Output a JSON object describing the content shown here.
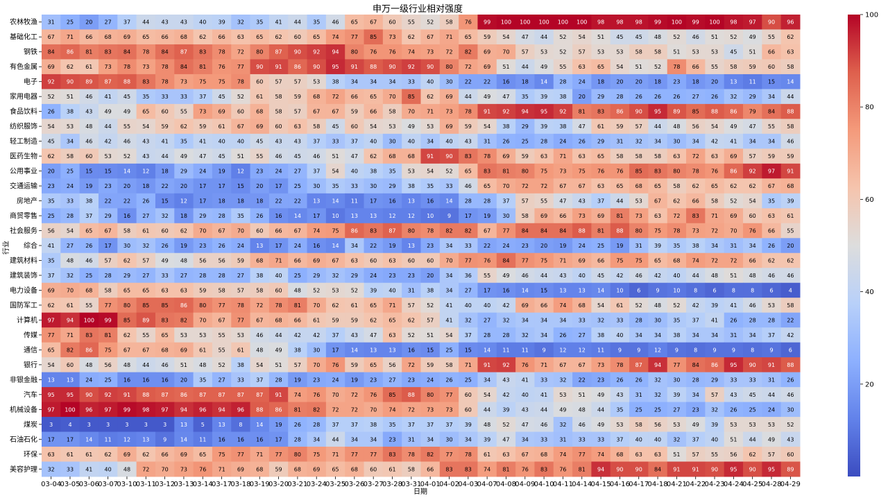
{
  "chart_data": {
    "type": "heatmap",
    "title": "申万一级行业相对强度",
    "xlabel": "日期",
    "ylabel": "行业",
    "colormap": "coolwarm",
    "vmin": 0,
    "vmax": 100,
    "colorbar_ticks": [
      20,
      40,
      60,
      80,
      100
    ],
    "x": [
      "03-04",
      "03-05",
      "03-06",
      "03-07",
      "03-10",
      "03-11",
      "03-12",
      "03-13",
      "03-14",
      "03-17",
      "03-18",
      "03-19",
      "03-20",
      "03-21",
      "03-24",
      "03-25",
      "03-26",
      "03-27",
      "03-28",
      "03-31",
      "04-01",
      "04-02",
      "04-03",
      "04-07",
      "04-08",
      "04-09",
      "04-10",
      "04-11",
      "04-14",
      "04-15",
      "04-16",
      "04-17",
      "04-18",
      "04-21",
      "04-22",
      "04-23",
      "04-24",
      "04-25",
      "04-28",
      "04-29"
    ],
    "y": [
      "农林牧渔",
      "基础化工",
      "钢铁",
      "有色金属",
      "电子",
      "家用电器",
      "食品饮料",
      "纺织服饰",
      "轻工制造",
      "医药生物",
      "公用事业",
      "交通运输",
      "房地产",
      "商贸零售",
      "社会服务",
      "综合",
      "建筑材料",
      "建筑装饰",
      "电力设备",
      "国防军工",
      "计算机",
      "传媒",
      "通信",
      "银行",
      "非银金融",
      "汽车",
      "机械设备",
      "煤炭",
      "石油石化",
      "环保",
      "美容护理"
    ],
    "values": [
      [
        31,
        25,
        20,
        27,
        37,
        44,
        43,
        43,
        40,
        39,
        32,
        35,
        41,
        44,
        35,
        46,
        65,
        67,
        60,
        55,
        52,
        58,
        76,
        99,
        100,
        100,
        100,
        100,
        100,
        98,
        98,
        98,
        99,
        100,
        99,
        100,
        98,
        97,
        90,
        96
      ],
      [
        67,
        71,
        66,
        68,
        69,
        65,
        66,
        68,
        62,
        66,
        63,
        65,
        62,
        60,
        65,
        74,
        77,
        85,
        73,
        62,
        67,
        71,
        65,
        59,
        54,
        47,
        44,
        52,
        54,
        51,
        45,
        45,
        48,
        52,
        46,
        51,
        52,
        49,
        55,
        62
      ],
      [
        84,
        86,
        81,
        83,
        84,
        78,
        84,
        87,
        83,
        78,
        72,
        80,
        87,
        90,
        92,
        94,
        80,
        76,
        76,
        74,
        73,
        72,
        82,
        69,
        70,
        57,
        53,
        52,
        57,
        53,
        53,
        58,
        58,
        51,
        53,
        53,
        45,
        51,
        66,
        63
      ],
      [
        69,
        62,
        61,
        73,
        78,
        73,
        78,
        84,
        81,
        76,
        77,
        90,
        91,
        86,
        90,
        95,
        91,
        88,
        90,
        92,
        90,
        80,
        72,
        69,
        51,
        44,
        49,
        55,
        63,
        65,
        54,
        51,
        52,
        78,
        66,
        55,
        58,
        59,
        60,
        58
      ],
      [
        92,
        90,
        89,
        87,
        88,
        83,
        78,
        73,
        75,
        75,
        78,
        60,
        57,
        57,
        53,
        38,
        34,
        34,
        34,
        33,
        40,
        30,
        22,
        22,
        16,
        18,
        14,
        28,
        24,
        18,
        20,
        20,
        18,
        23,
        18,
        20,
        13,
        11,
        15,
        14
      ],
      [
        52,
        51,
        46,
        41,
        45,
        35,
        33,
        33,
        37,
        45,
        52,
        61,
        58,
        59,
        68,
        72,
        66,
        65,
        70,
        85,
        62,
        69,
        44,
        49,
        47,
        35,
        39,
        38,
        20,
        29,
        28,
        26,
        26,
        26,
        27,
        26,
        32,
        29,
        34,
        44
      ],
      [
        26,
        38,
        43,
        49,
        49,
        65,
        60,
        55,
        73,
        69,
        60,
        68,
        58,
        57,
        67,
        67,
        59,
        66,
        58,
        70,
        71,
        73,
        78,
        91,
        92,
        94,
        95,
        92,
        81,
        83,
        86,
        90,
        95,
        89,
        85,
        88,
        86,
        79,
        84,
        88
      ],
      [
        54,
        53,
        48,
        44,
        55,
        54,
        59,
        62,
        59,
        61,
        67,
        69,
        60,
        63,
        58,
        45,
        60,
        54,
        53,
        49,
        53,
        69,
        59,
        54,
        38,
        29,
        39,
        38,
        47,
        61,
        59,
        57,
        44,
        48,
        56,
        54,
        49,
        47,
        55,
        58
      ],
      [
        45,
        34,
        46,
        42,
        46,
        43,
        41,
        35,
        41,
        40,
        40,
        45,
        43,
        43,
        37,
        33,
        37,
        40,
        30,
        40,
        34,
        40,
        43,
        31,
        26,
        25,
        28,
        24,
        26,
        29,
        31,
        32,
        34,
        30,
        34,
        42,
        41,
        34,
        34,
        46
      ],
      [
        62,
        58,
        60,
        53,
        52,
        43,
        44,
        49,
        47,
        45,
        51,
        55,
        46,
        45,
        46,
        51,
        47,
        62,
        68,
        68,
        91,
        90,
        83,
        78,
        69,
        59,
        63,
        71,
        63,
        65,
        58,
        58,
        58,
        63,
        72,
        63,
        69,
        57,
        59,
        59
      ],
      [
        20,
        25,
        15,
        15,
        14,
        12,
        18,
        29,
        24,
        19,
        12,
        23,
        24,
        27,
        37,
        54,
        40,
        38,
        35,
        53,
        54,
        52,
        65,
        83,
        81,
        80,
        75,
        73,
        75,
        76,
        76,
        85,
        83,
        80,
        78,
        76,
        86,
        92,
        97,
        91
      ],
      [
        23,
        24,
        19,
        23,
        20,
        18,
        22,
        20,
        17,
        17,
        15,
        20,
        17,
        25,
        30,
        35,
        33,
        30,
        29,
        38,
        35,
        33,
        46,
        65,
        70,
        72,
        72,
        67,
        67,
        63,
        65,
        68,
        65,
        58,
        62,
        65,
        62,
        62,
        67,
        68
      ],
      [
        35,
        33,
        38,
        22,
        22,
        26,
        15,
        12,
        17,
        18,
        18,
        18,
        22,
        22,
        13,
        14,
        11,
        17,
        16,
        13,
        16,
        14,
        28,
        28,
        37,
        57,
        55,
        47,
        43,
        37,
        44,
        53,
        67,
        62,
        66,
        58,
        52,
        54,
        35,
        39
      ],
      [
        25,
        28,
        37,
        29,
        16,
        27,
        32,
        18,
        29,
        28,
        35,
        26,
        16,
        14,
        17,
        10,
        13,
        13,
        12,
        12,
        10,
        9,
        17,
        19,
        30,
        58,
        69,
        66,
        73,
        69,
        81,
        73,
        63,
        72,
        83,
        71,
        69,
        60,
        63,
        61
      ],
      [
        56,
        54,
        65,
        67,
        58,
        61,
        60,
        62,
        70,
        67,
        70,
        60,
        66,
        67,
        74,
        75,
        86,
        83,
        87,
        80,
        78,
        82,
        82,
        67,
        77,
        84,
        84,
        84,
        88,
        81,
        88,
        80,
        75,
        78,
        73,
        72,
        70,
        76,
        66,
        55
      ],
      [
        41,
        27,
        26,
        17,
        30,
        32,
        26,
        19,
        23,
        26,
        24,
        13,
        17,
        24,
        16,
        14,
        34,
        22,
        19,
        13,
        23,
        34,
        33,
        22,
        24,
        23,
        20,
        19,
        24,
        25,
        19,
        31,
        39,
        35,
        38,
        34,
        31,
        34,
        26,
        20
      ],
      [
        35,
        48,
        46,
        57,
        62,
        57,
        49,
        48,
        56,
        56,
        59,
        68,
        71,
        66,
        69,
        67,
        63,
        60,
        63,
        60,
        60,
        70,
        77,
        76,
        84,
        77,
        75,
        71,
        69,
        66,
        75,
        75,
        65,
        68,
        74,
        72,
        72,
        66,
        62,
        62
      ],
      [
        37,
        32,
        25,
        28,
        29,
        27,
        33,
        27,
        28,
        28,
        27,
        38,
        40,
        25,
        29,
        32,
        29,
        24,
        23,
        23,
        20,
        34,
        36,
        55,
        49,
        46,
        44,
        43,
        40,
        45,
        42,
        46,
        42,
        40,
        44,
        48,
        51,
        48,
        46,
        46
      ],
      [
        69,
        70,
        68,
        58,
        65,
        65,
        63,
        63,
        59,
        58,
        57,
        58,
        60,
        48,
        52,
        53,
        52,
        39,
        40,
        31,
        38,
        34,
        27,
        17,
        16,
        14,
        15,
        13,
        13,
        14,
        10,
        6,
        9,
        10,
        8,
        6,
        8,
        8,
        6,
        4
      ],
      [
        62,
        61,
        55,
        77,
        80,
        85,
        85,
        86,
        80,
        77,
        78,
        72,
        78,
        81,
        70,
        62,
        61,
        65,
        71,
        57,
        52,
        41,
        40,
        40,
        42,
        69,
        66,
        74,
        68,
        54,
        61,
        52,
        48,
        52,
        42,
        39,
        41,
        46,
        53,
        58
      ],
      [
        97,
        94,
        100,
        99,
        85,
        89,
        83,
        82,
        70,
        67,
        77,
        67,
        68,
        66,
        61,
        59,
        59,
        62,
        65,
        62,
        57,
        41,
        32,
        27,
        32,
        34,
        34,
        34,
        33,
        32,
        33,
        28,
        30,
        35,
        37,
        41,
        26,
        28,
        28,
        22
      ],
      [
        77,
        71,
        83,
        81,
        62,
        55,
        65,
        53,
        53,
        55,
        53,
        46,
        44,
        42,
        42,
        37,
        43,
        47,
        63,
        52,
        51,
        54,
        37,
        28,
        28,
        32,
        34,
        26,
        27,
        38,
        40,
        34,
        34,
        38,
        34,
        34,
        31,
        34,
        37,
        42
      ],
      [
        65,
        82,
        86,
        75,
        67,
        67,
        68,
        69,
        61,
        55,
        61,
        48,
        49,
        38,
        30,
        17,
        14,
        13,
        13,
        16,
        15,
        25,
        15,
        14,
        11,
        11,
        9,
        12,
        12,
        11,
        9,
        9,
        12,
        9,
        8,
        9,
        9,
        8,
        9,
        6
      ],
      [
        54,
        60,
        48,
        56,
        48,
        44,
        46,
        51,
        48,
        52,
        38,
        54,
        51,
        57,
        70,
        76,
        59,
        65,
        56,
        72,
        59,
        58,
        71,
        91,
        92,
        76,
        71,
        67,
        67,
        73,
        78,
        87,
        94,
        77,
        84,
        86,
        95,
        90,
        91,
        88
      ],
      [
        13,
        13,
        24,
        25,
        16,
        16,
        16,
        20,
        35,
        27,
        33,
        37,
        28,
        19,
        23,
        24,
        19,
        23,
        27,
        23,
        24,
        26,
        25,
        34,
        43,
        41,
        33,
        32,
        22,
        23,
        26,
        26,
        32,
        30,
        28,
        29,
        33,
        33,
        31,
        26
      ],
      [
        95,
        95,
        90,
        92,
        91,
        88,
        87,
        86,
        87,
        87,
        87,
        87,
        91,
        74,
        76,
        70,
        72,
        76,
        85,
        88,
        80,
        77,
        60,
        54,
        42,
        40,
        41,
        53,
        51,
        49,
        43,
        31,
        32,
        39,
        34,
        57,
        43,
        45,
        44,
        46
      ],
      [
        97,
        100,
        96,
        97,
        99,
        98,
        97,
        94,
        96,
        94,
        96,
        88,
        86,
        81,
        82,
        72,
        72,
        70,
        74,
        72,
        73,
        73,
        60,
        44,
        39,
        43,
        44,
        49,
        48,
        44,
        35,
        25,
        25,
        27,
        23,
        32,
        26,
        25,
        24,
        30
      ],
      [
        3,
        4,
        3,
        3,
        3,
        3,
        3,
        13,
        5,
        13,
        8,
        14,
        19,
        26,
        28,
        37,
        37,
        38,
        35,
        37,
        37,
        37,
        39,
        48,
        52,
        47,
        46,
        32,
        46,
        49,
        53,
        58,
        56,
        53,
        49,
        39,
        53,
        53,
        53,
        52
      ],
      [
        17,
        17,
        14,
        11,
        12,
        13,
        9,
        14,
        11,
        16,
        16,
        16,
        17,
        28,
        34,
        44,
        34,
        34,
        23,
        31,
        34,
        30,
        34,
        39,
        47,
        34,
        33,
        31,
        33,
        33,
        37,
        40,
        40,
        32,
        37,
        40,
        51,
        44,
        49,
        43
      ],
      [
        63,
        61,
        61,
        62,
        69,
        62,
        66,
        69,
        65,
        75,
        77,
        71,
        77,
        80,
        75,
        71,
        77,
        77,
        83,
        78,
        82,
        77,
        78,
        61,
        63,
        67,
        68,
        74,
        77,
        74,
        68,
        63,
        63,
        51,
        57,
        55,
        56,
        62,
        57,
        60
      ],
      [
        32,
        33,
        41,
        40,
        48,
        72,
        70,
        73,
        76,
        71,
        69,
        68,
        59,
        68,
        69,
        65,
        68,
        60,
        61,
        58,
        66,
        83,
        83,
        74,
        81,
        76,
        83,
        76,
        81,
        94,
        90,
        90,
        84,
        91,
        91,
        90,
        95,
        90,
        95,
        89
      ]
    ]
  }
}
